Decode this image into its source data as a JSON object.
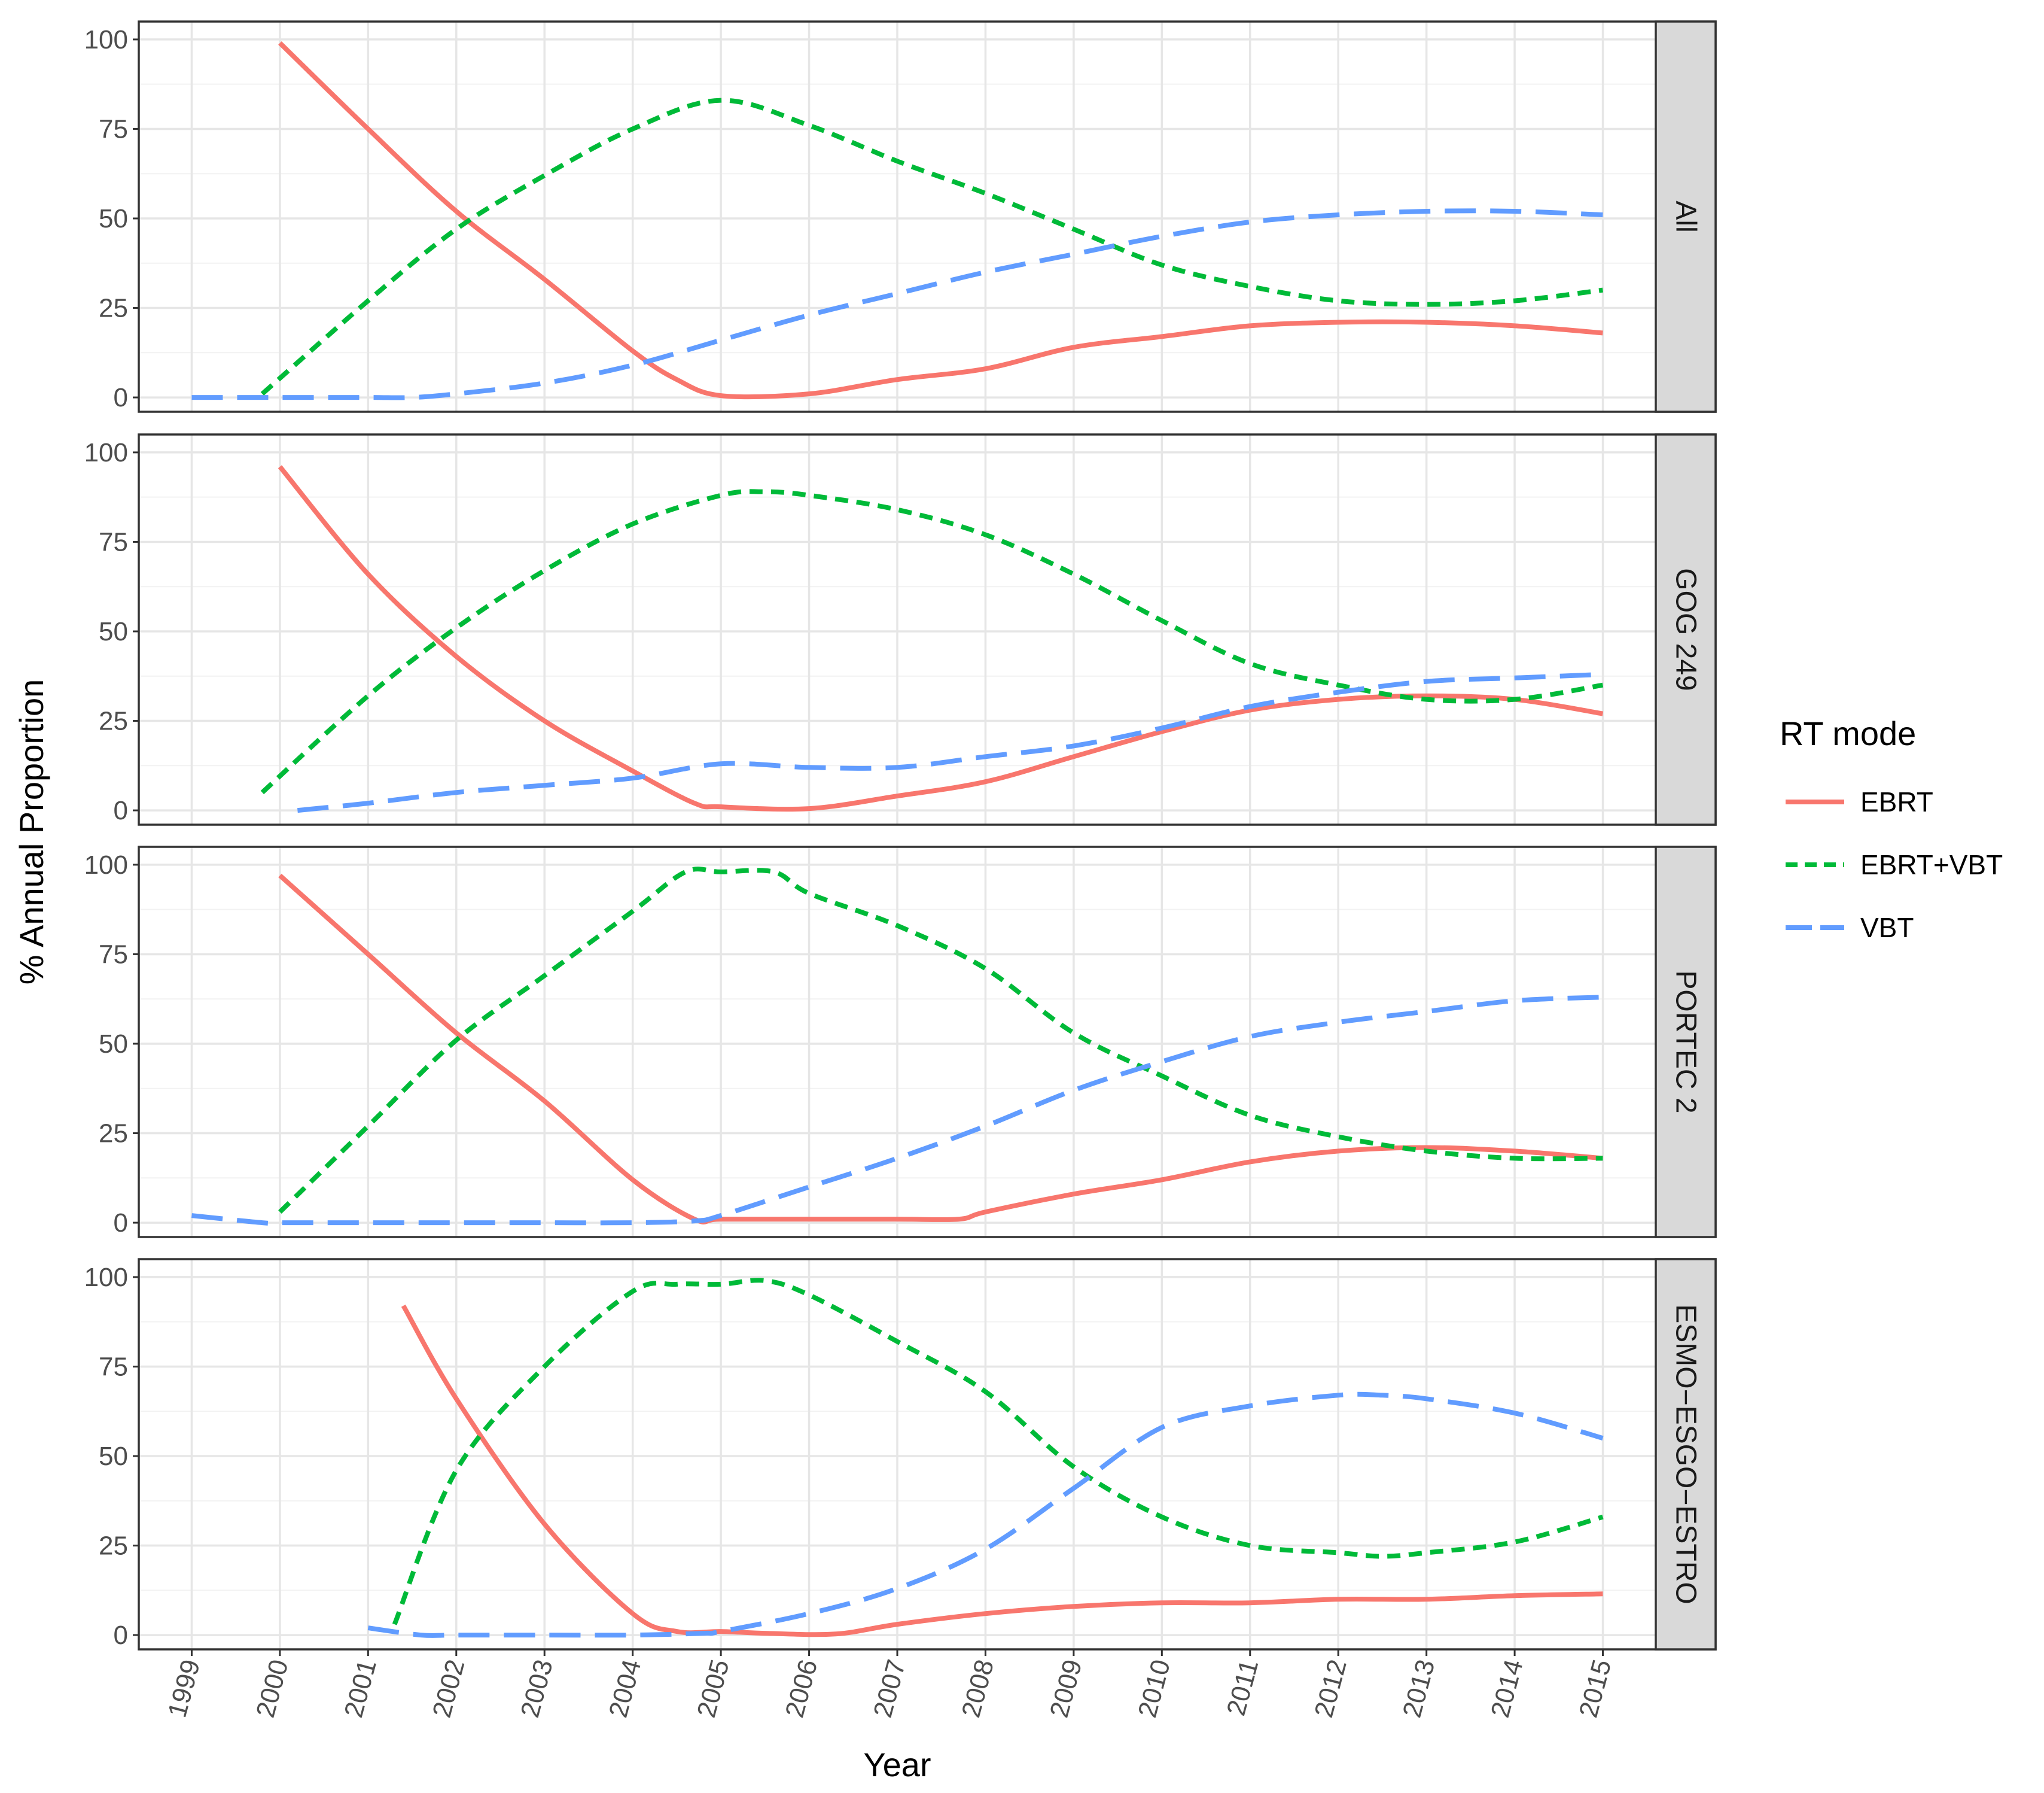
{
  "chart_data": {
    "type": "line",
    "xlabel": "Year",
    "ylabel": "% Annual Proportion",
    "x_ticks": [
      "1999",
      "2000",
      "2001",
      "2002",
      "2003",
      "2004",
      "2005",
      "2006",
      "2007",
      "2008",
      "2009",
      "2010",
      "2011",
      "2012",
      "2013",
      "2014",
      "2015"
    ],
    "xlim": [
      1998.4,
      2015.6
    ],
    "y_ticks": [
      "0",
      "25",
      "50",
      "75",
      "100"
    ],
    "ylim": [
      -4,
      105
    ],
    "grid": true,
    "legend": {
      "title": "RT mode",
      "position": "right",
      "entries": [
        {
          "name": "EBRT",
          "color": "#F8766D",
          "dash": "solid"
        },
        {
          "name": "EBRT+VBT",
          "color": "#00BA38",
          "dash": "dotted"
        },
        {
          "name": "VBT",
          "color": "#619CFF",
          "dash": "dashed"
        }
      ]
    },
    "panels": [
      {
        "strip": "All",
        "series": [
          {
            "name": "EBRT",
            "x": [
              2000,
              2001,
              2002,
              2003,
              2004,
              2004.5,
              2005,
              2006,
              2007,
              2008,
              2009,
              2010,
              2011,
              2012,
              2013,
              2014,
              2015
            ],
            "y": [
              99,
              75,
              52,
              33,
              13,
              5,
              0.5,
              1,
              5,
              8,
              14,
              17,
              20,
              21,
              21,
              20,
              18
            ]
          },
          {
            "name": "EBRT+VBT",
            "x": [
              1999.8,
              2001,
              2002,
              2003,
              2004,
              2005,
              2006,
              2007,
              2008,
              2009,
              2010,
              2011,
              2012,
              2013,
              2014,
              2015
            ],
            "y": [
              1,
              27,
              47,
              62,
              75,
              83,
              76,
              66,
              57,
              47,
              37,
              31,
              27,
              26,
              27,
              30
            ]
          },
          {
            "name": "VBT",
            "x": [
              1999,
              2000,
              2001,
              2001.5,
              2002,
              2003,
              2004,
              2005,
              2006,
              2007,
              2008,
              2009,
              2010,
              2011,
              2012,
              2013,
              2014,
              2015
            ],
            "y": [
              0,
              0,
              0,
              0,
              1,
              4,
              9,
              16,
              23,
              29,
              35,
              40,
              45,
              49,
              51,
              52,
              52,
              51
            ]
          }
        ]
      },
      {
        "strip": "GOG 249",
        "series": [
          {
            "name": "EBRT",
            "x": [
              2000,
              2001,
              2002,
              2003,
              2004,
              2004.7,
              2005,
              2006,
              2007,
              2008,
              2009,
              2010,
              2011,
              2012,
              2013,
              2014,
              2015
            ],
            "y": [
              96,
              66,
              43,
              25,
              11,
              2,
              1,
              0.5,
              4,
              8,
              15,
              22,
              28,
              31,
              32,
              31,
              27
            ]
          },
          {
            "name": "EBRT+VBT",
            "x": [
              1999.8,
              2001,
              2002,
              2003,
              2004,
              2005,
              2005.5,
              2006,
              2007,
              2008,
              2009,
              2010,
              2011,
              2012,
              2013,
              2014,
              2015
            ],
            "y": [
              5,
              32,
              51,
              67,
              80,
              88,
              89,
              88,
              84,
              77,
              66,
              53,
              41,
              35,
              31,
              31,
              35
            ]
          },
          {
            "name": "VBT",
            "x": [
              2000.2,
              2001,
              2002,
              2003,
              2004,
              2005,
              2006,
              2007,
              2008,
              2009,
              2010,
              2011,
              2012,
              2013,
              2014,
              2015
            ],
            "y": [
              0,
              2,
              5,
              7,
              9,
              13,
              12,
              12,
              15,
              18,
              23,
              29,
              33,
              36,
              37,
              38
            ]
          }
        ]
      },
      {
        "strip": "PORTEC 2",
        "series": [
          {
            "name": "EBRT",
            "x": [
              2000,
              2001,
              2002,
              2003,
              2004,
              2004.7,
              2005,
              2006,
              2007,
              2007.7,
              2008,
              2009,
              2010,
              2011,
              2012,
              2013,
              2014,
              2015
            ],
            "y": [
              97,
              75,
              53,
              34,
              12,
              1,
              1,
              1,
              1,
              1,
              3,
              8,
              12,
              17,
              20,
              21,
              20,
              18
            ]
          },
          {
            "name": "EBRT+VBT",
            "x": [
              2000,
              2001,
              2002,
              2003,
              2004,
              2004.6,
              2005,
              2005.6,
              2006,
              2007,
              2008,
              2009,
              2010,
              2011,
              2012,
              2013,
              2014,
              2015
            ],
            "y": [
              3,
              27,
              51,
              69,
              87,
              98,
              98,
              98,
              92,
              83,
              71,
              53,
              41,
              30,
              24,
              20,
              18,
              18
            ]
          },
          {
            "name": "VBT",
            "x": [
              1999,
              1999.8,
              2000,
              2001,
              2002,
              2003,
              2004,
              2004.7,
              2005,
              2006,
              2007,
              2008,
              2009,
              2010,
              2011,
              2012,
              2013,
              2014,
              2015
            ],
            "y": [
              2,
              0,
              0,
              0,
              0,
              0,
              0,
              0.5,
              2,
              10,
              18,
              27,
              37,
              45,
              52,
              56,
              59,
              62,
              63
            ]
          }
        ]
      },
      {
        "strip": "ESMO−ESGO−ESTRO",
        "series": [
          {
            "name": "EBRT",
            "x": [
              2001.4,
              2002,
              2003,
              2004,
              2004.5,
              2005,
              2005.5,
              2006.3,
              2007,
              2008,
              2009,
              2010,
              2011,
              2012,
              2013,
              2014,
              2015
            ],
            "y": [
              92,
              66,
              31,
              6,
              1,
              1,
              0.5,
              0.3,
              3,
              6,
              8,
              9,
              9,
              10,
              10,
              11,
              11.5
            ]
          },
          {
            "name": "EBRT+VBT",
            "x": [
              2001.3,
              2002,
              2003,
              2004,
              2004.5,
              2005,
              2005.5,
              2006,
              2007,
              2008,
              2009,
              2010,
              2011,
              2012,
              2012.5,
              2013,
              2014,
              2015
            ],
            "y": [
              3,
              46,
              75,
              96,
              98,
              98,
              99,
              95,
              82,
              68,
              47,
              33,
              25,
              23,
              22,
              23,
              26,
              33
            ]
          },
          {
            "name": "VBT",
            "x": [
              2001,
              2001.6,
              2002,
              2003,
              2004,
              2004.8,
              2005,
              2006,
              2007,
              2008,
              2009,
              2010,
              2011,
              2012,
              2012.5,
              2013,
              2014,
              2015
            ],
            "y": [
              2,
              0,
              0,
              0,
              0,
              0.5,
              1,
              6,
              13,
              24,
              41,
              58,
              64,
              67,
              67,
              66,
              62,
              55
            ]
          }
        ]
      }
    ]
  }
}
